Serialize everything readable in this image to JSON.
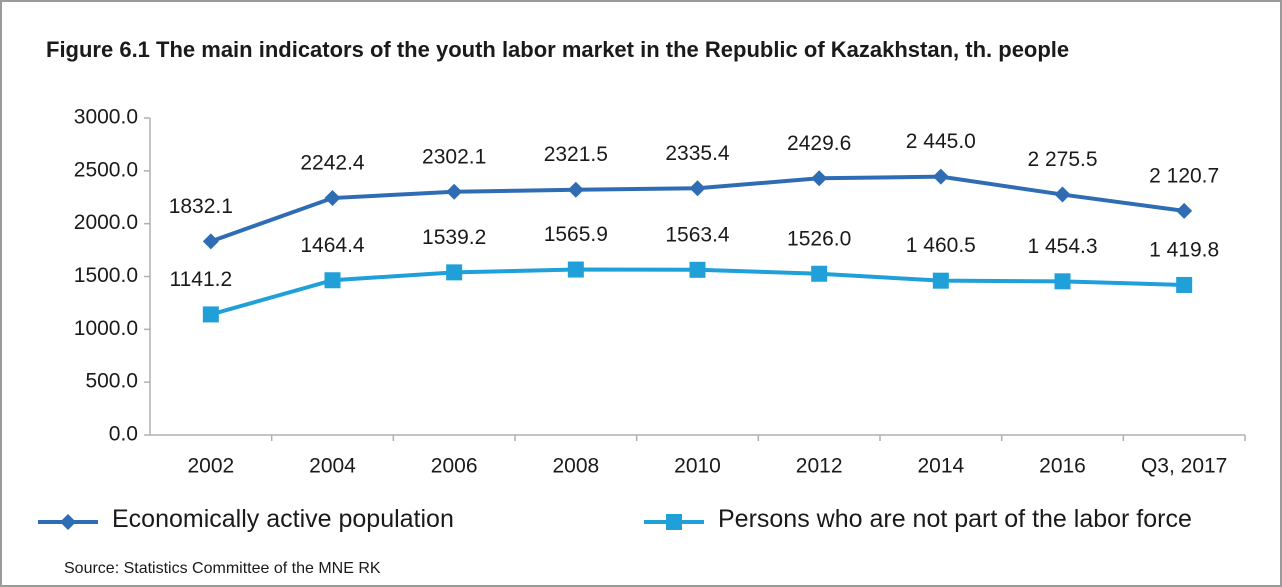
{
  "chart_data": {
    "type": "line",
    "title": "Figure 6.1 The main indicators of the youth labor market in the Republic of Kazakhstan, th. people",
    "categories": [
      "2002",
      "2004",
      "2006",
      "2008",
      "2010",
      "2012",
      "2014",
      "2016",
      "Q3, 2017"
    ],
    "series": [
      {
        "name": "Economically active population",
        "color": "#2e6db4",
        "marker": "diamond",
        "values": [
          1832.1,
          2242.4,
          2302.1,
          2321.5,
          2335.4,
          2429.6,
          2445.0,
          2275.5,
          2120.7
        ],
        "value_labels": [
          "1832.1",
          "2242.4",
          "2302.1",
          "2321.5",
          "2335.4",
          "2429.6",
          "2 445.0",
          "2 275.5",
          "2 120.7"
        ]
      },
      {
        "name": "Persons who are not part of the labor force",
        "color": "#1fa0d8",
        "marker": "square",
        "values": [
          1141.2,
          1464.4,
          1539.2,
          1565.9,
          1563.4,
          1526.0,
          1460.5,
          1454.3,
          1419.8
        ],
        "value_labels": [
          "1141.2",
          "1464.4",
          "1539.2",
          "1565.9",
          "1563.4",
          "1526.0",
          "1 460.5",
          "1 454.3",
          "1 419.8"
        ]
      }
    ],
    "ylim": [
      0,
      3000
    ],
    "yticks": [
      {
        "value": 0,
        "label": "0.0"
      },
      {
        "value": 500,
        "label": "500.0"
      },
      {
        "value": 1000,
        "label": "1000.0"
      },
      {
        "value": 1500,
        "label": "1500.0"
      },
      {
        "value": 2000,
        "label": "2000.0"
      },
      {
        "value": 2500,
        "label": "2500.0"
      },
      {
        "value": 3000,
        "label": "3000.0"
      }
    ],
    "grid": false,
    "source": "Source: Statistics Committee of the MNE RK"
  }
}
